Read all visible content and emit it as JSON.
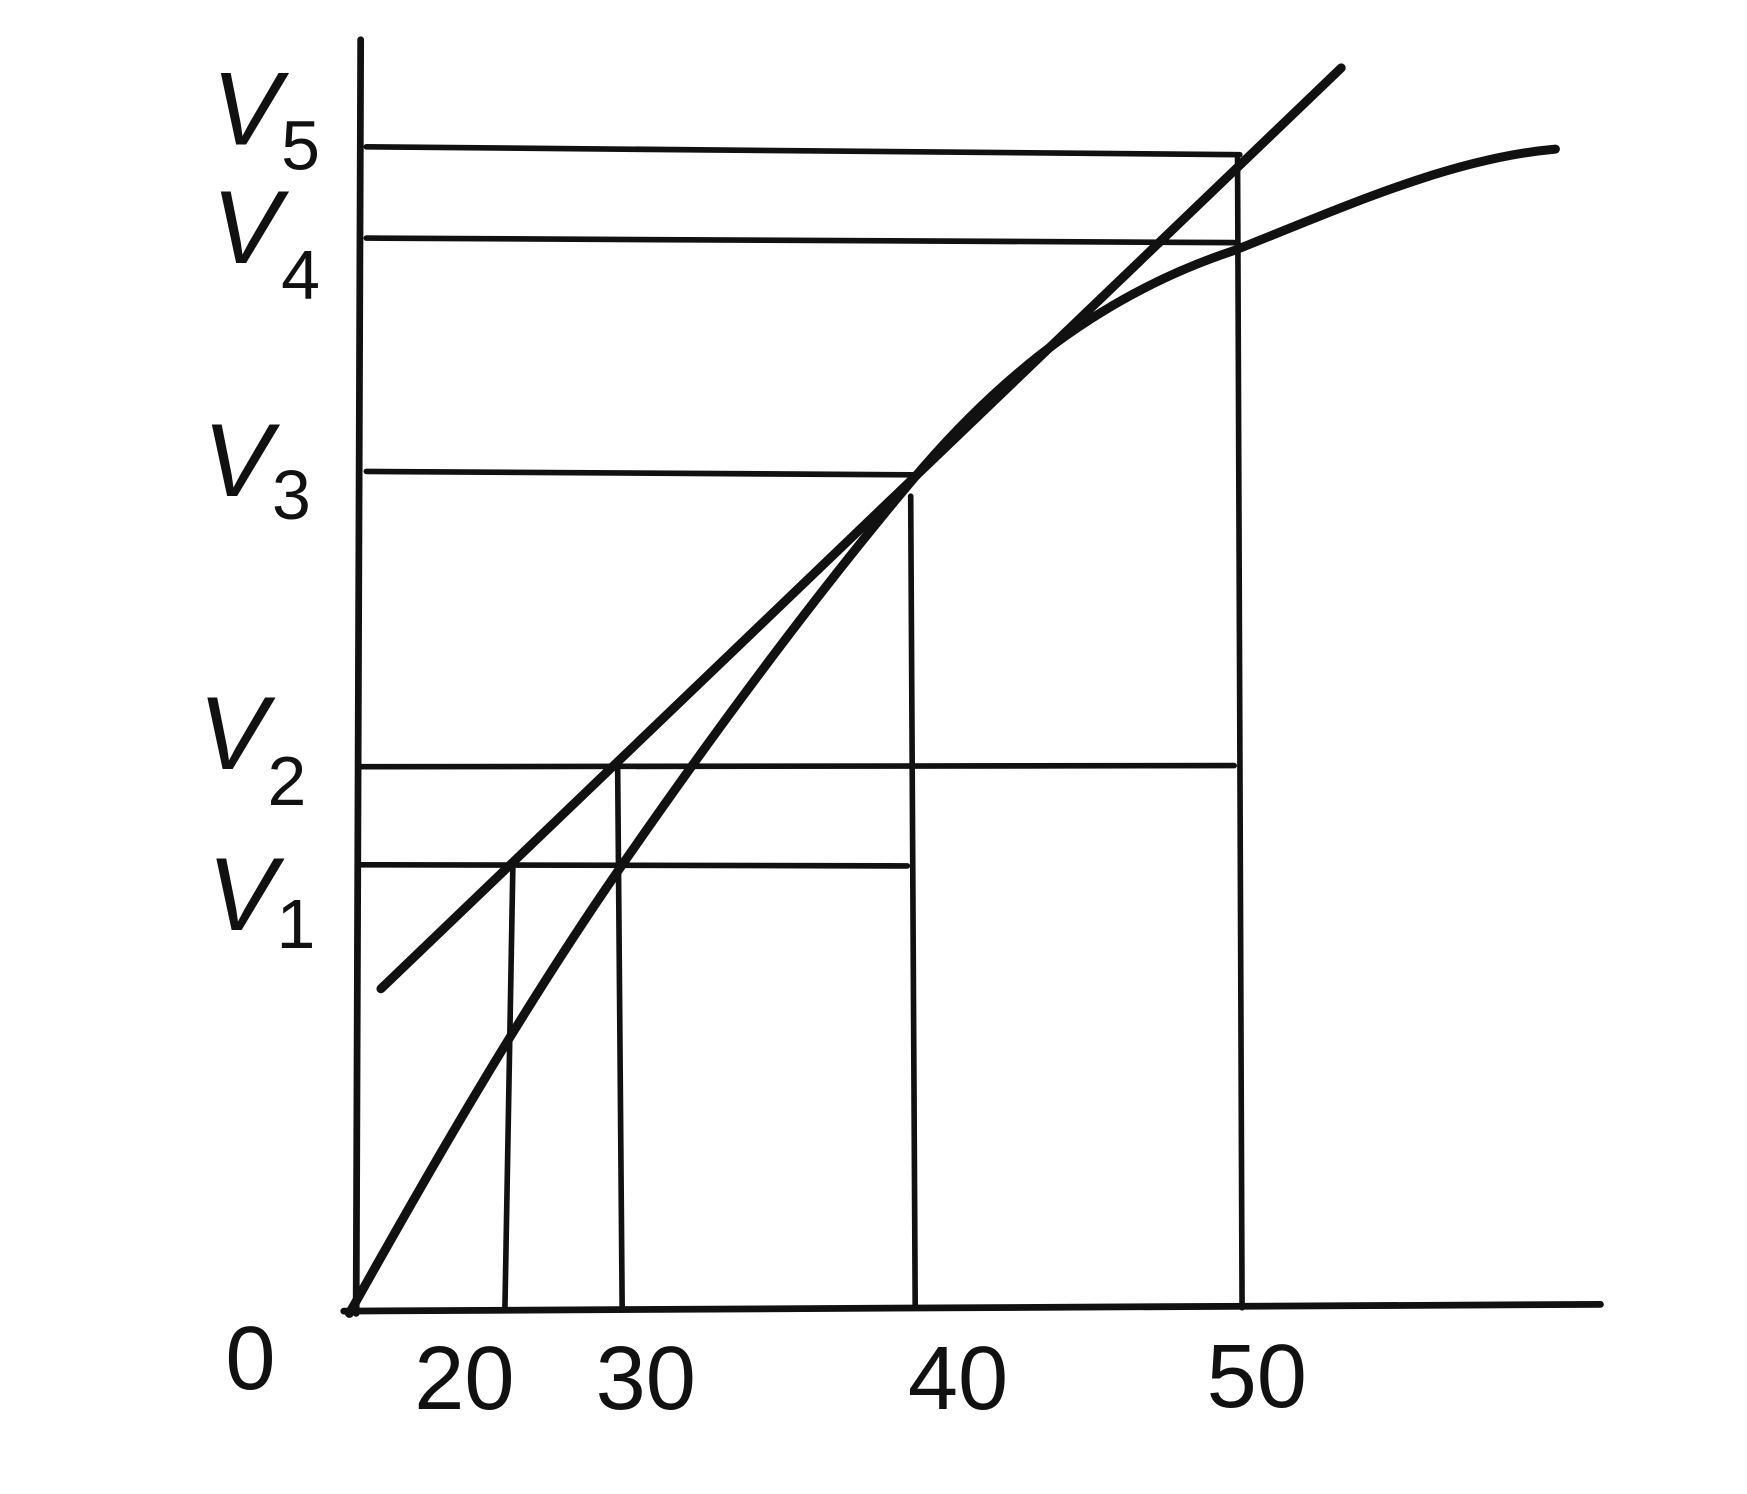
{
  "y_labels": [
    {
      "base": "V",
      "sub": "5"
    },
    {
      "base": "V",
      "sub": "4"
    },
    {
      "base": "V",
      "sub": "3"
    },
    {
      "base": "V",
      "sub": "2"
    },
    {
      "base": "V",
      "sub": "1"
    }
  ],
  "origin": "0",
  "x_labels": [
    "20",
    "30",
    "40",
    "50"
  ]
}
